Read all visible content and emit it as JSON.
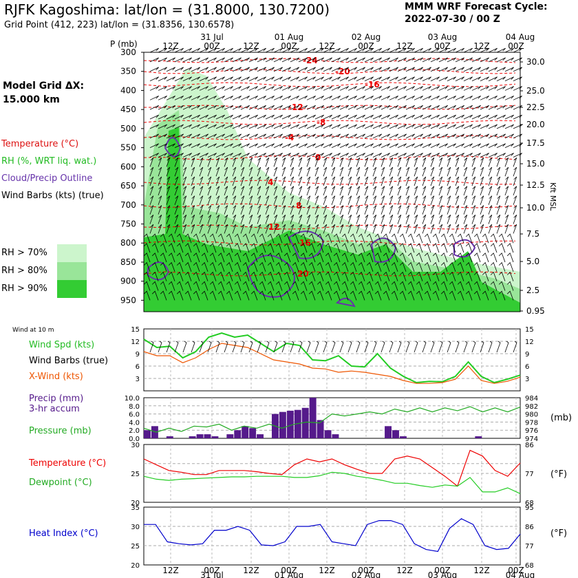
{
  "header": {
    "title": "RJFK Kagoshima:  lat/lon = (31.8000, 130.7200)",
    "grid_point": "Grid Point (412, 223) lat/lon = (31.8356, 130.6578)",
    "forecast_line1": "MMM WRF Forecast Cycle:",
    "forecast_line2": "2022-07-30 / 00  Z",
    "model_grid_line1": "Model Grid ΔX:",
    "model_grid_line2": " 15.000 km"
  },
  "legend": {
    "temperature": "Temperature (°C)",
    "rh": "RH (%, WRT liq. wat.)",
    "cloud": "Cloud/Precip Outline",
    "wind": "Wind Barbs (kts) (true)",
    "rh70": "RH > 70%",
    "rh80": "RH > 80%",
    "rh90": "RH > 90%",
    "rh_colors": [
      "#ccf5cc",
      "#99e599",
      "#33cc33"
    ]
  },
  "panel_labels": {
    "wind10m": "Wind at 10 m",
    "wind_spd": "Wind Spd (kts)",
    "wind_barbs": "Wind Barbs (true)",
    "x_wind": "X-Wind (kts)",
    "precip1": "Precip (mm)",
    "precip2": "3-hr accum",
    "pressure": "Pressure (mb)",
    "temperature": "Temperature (°C)",
    "dewpoint": "Dewpoint (°C)",
    "heat_index": "Heat Index (°C)",
    "mb": "(mb)",
    "degf": "(°F)",
    "kft": "Kft MSL"
  },
  "chart_data": [
    {
      "type": "contour",
      "panel": "cross-section",
      "x_time_labels": [
        "12Z",
        "00Z",
        "12Z",
        "00Z",
        "12Z",
        "00Z",
        "12Z",
        "00Z",
        "12Z",
        "00Z"
      ],
      "x_date_labels": [
        "31 Jul",
        "01 Aug",
        "02 Aug",
        "03 Aug",
        "04 Aug"
      ],
      "y_label": "P (mb)",
      "pressure_levels": [
        300,
        350,
        400,
        450,
        500,
        550,
        600,
        650,
        700,
        750,
        800,
        850,
        900,
        950
      ],
      "kft_ticks": [
        "30.0",
        "25.0",
        "22.5",
        "20.0",
        "17.5",
        "15.0",
        "12.5",
        "10.0",
        "7.5",
        "5.0",
        "2.5",
        "0.95"
      ],
      "temperature_contour_labels": [
        "-24",
        "-20",
        "-16",
        "-12",
        "-8",
        "-4",
        "0",
        "4",
        "8",
        "12",
        "16",
        "20"
      ],
      "colors": {
        "temperature": "#ee0000",
        "rh": "#33cc33",
        "cloud": "#6633aa"
      }
    },
    {
      "type": "line",
      "panel": "wind",
      "y_ticks": [
        "15",
        "12",
        "9",
        "6",
        "3"
      ],
      "ylim": [
        0,
        15
      ],
      "series": [
        {
          "name": "Wind Spd (kts)",
          "color": "#22cc22",
          "values": [
            12.5,
            10.5,
            10.8,
            8.0,
            9.5,
            13.0,
            14.0,
            13.0,
            13.5,
            11.5,
            9.5,
            11.5,
            11.0,
            7.5,
            7.3,
            8.5,
            6.0,
            5.8,
            9.0,
            5.5,
            3.5,
            2.0,
            2.3,
            2.2,
            3.5,
            7.0,
            3.5,
            2.0,
            2.8,
            3.8
          ]
        },
        {
          "name": "X-Wind (kts)",
          "color": "#ee5500",
          "values": [
            9.5,
            8.5,
            8.5,
            6.8,
            8.0,
            10.0,
            11.5,
            11.0,
            10.5,
            9.0,
            7.5,
            7.0,
            6.5,
            5.5,
            5.3,
            4.5,
            4.8,
            4.5,
            4.0,
            3.5,
            2.5,
            1.8,
            1.8,
            2.0,
            2.8,
            6.0,
            2.5,
            1.8,
            2.3,
            3.3
          ]
        }
      ]
    },
    {
      "type": "bar",
      "panel": "precip",
      "y_ticks": [
        "10.0",
        "8.0",
        "6.0",
        "4.0",
        "2.0",
        "0.0"
      ],
      "ylim": [
        0,
        10
      ],
      "values": [
        2.0,
        3.0,
        0,
        0.5,
        0,
        0,
        0.5,
        1.0,
        1.0,
        0.5,
        0,
        1.0,
        2.0,
        3.0,
        2.5,
        1.0,
        0,
        6.0,
        6.5,
        6.8,
        7.0,
        7.5,
        10.0,
        4.5,
        2.0,
        1.0,
        0,
        0,
        0,
        0,
        0,
        0,
        3.0,
        2.0,
        0.5,
        0,
        0,
        0,
        0,
        0,
        0,
        0,
        0,
        0,
        0.5,
        0,
        0,
        0,
        0,
        0
      ],
      "color": "#551a8b"
    },
    {
      "type": "line",
      "panel": "pressure",
      "y_ticks": [
        "984",
        "982",
        "980",
        "978",
        "976",
        "974"
      ],
      "ylim": [
        974,
        984
      ],
      "series": [
        {
          "name": "Pressure (mb)",
          "color": "#22aa22",
          "values": [
            976.5,
            975.5,
            976.5,
            975.7,
            977.0,
            976.8,
            977.5,
            976.0,
            977.0,
            976.5,
            977.5,
            976.5,
            977.5,
            978.0,
            977.8,
            980.0,
            979.5,
            980.0,
            980.5,
            980.0,
            981.2,
            980.5,
            981.5,
            980.5,
            981.5,
            980.8,
            981.8,
            980.5,
            981.5,
            980.5,
            981.7
          ]
        }
      ]
    },
    {
      "type": "line",
      "panel": "temperature",
      "y_ticks_c": [
        "30",
        "25",
        "20"
      ],
      "y_ticks_f": [
        "86",
        "77",
        "68"
      ],
      "ylim": [
        20,
        30
      ],
      "series": [
        {
          "name": "Temperature (°C)",
          "color": "#ee0000",
          "values": [
            27.5,
            26.5,
            25.5,
            25.2,
            24.8,
            24.8,
            25.5,
            25.5,
            25.5,
            25.3,
            25.0,
            24.8,
            26.5,
            27.5,
            27.0,
            27.5,
            26.5,
            25.7,
            25.0,
            25.0,
            27.5,
            28.0,
            27.5,
            26.0,
            24.5,
            22.8,
            29.0,
            28.0,
            25.5,
            24.5,
            26.8
          ]
        },
        {
          "name": "Dewpoint (°C)",
          "color": "#22cc22",
          "values": [
            24.5,
            24.0,
            23.8,
            24.0,
            24.1,
            24.2,
            24.3,
            24.4,
            24.4,
            24.5,
            24.5,
            24.5,
            24.3,
            24.3,
            24.6,
            25.2,
            25.0,
            24.5,
            24.2,
            23.8,
            23.3,
            23.3,
            22.9,
            22.6,
            23.0,
            22.8,
            24.3,
            21.8,
            21.8,
            22.5,
            21.5
          ]
        }
      ]
    },
    {
      "type": "line",
      "panel": "heat-index",
      "y_ticks_c": [
        "35",
        "30",
        "25",
        "20"
      ],
      "y_ticks_f": [
        "95",
        "86",
        "77",
        "68"
      ],
      "ylim": [
        20,
        35
      ],
      "series": [
        {
          "name": "Heat Index (°C)",
          "color": "#0000cc",
          "values": [
            30.5,
            30.5,
            26.0,
            25.5,
            25.2,
            25.5,
            29.0,
            29.0,
            30.0,
            29.0,
            25.2,
            25.0,
            26.0,
            30.0,
            30.0,
            30.5,
            26.0,
            25.5,
            25.0,
            30.5,
            31.5,
            31.5,
            30.5,
            25.5,
            24.0,
            23.5,
            29.5,
            32.0,
            30.5,
            25.0,
            24.0,
            24.3,
            28.0
          ]
        }
      ]
    }
  ]
}
